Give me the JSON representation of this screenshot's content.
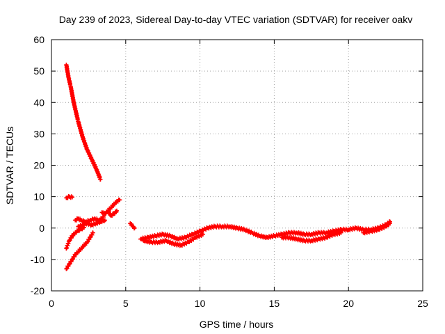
{
  "chart_data": {
    "type": "scatter",
    "title": "Day 239 of 2023, Sidereal Day-to-day VTEC variation (SDTVAR) for receiver oakv",
    "xlabel": "GPS time / hours",
    "ylabel": "SDTVAR / TECUs",
    "xlim": [
      0,
      25
    ],
    "ylim": [
      -20,
      60
    ],
    "xticks": [
      0,
      5,
      10,
      15,
      20,
      25
    ],
    "yticks": [
      -20,
      -10,
      0,
      10,
      20,
      30,
      40,
      50,
      60
    ],
    "grid": true,
    "marker": "+",
    "series": [
      {
        "name": "SDTVAR",
        "color": "#ff0000",
        "segments": [
          {
            "x": [
              1.0,
              1.15,
              1.3,
              1.5,
              1.8,
              2.1,
              2.4,
              2.7,
              3.0,
              3.3
            ],
            "y": [
              52.0,
              48.0,
              45.0,
              40.0,
              34.0,
              29.0,
              25.0,
              22.0,
              19.0,
              15.5
            ]
          },
          {
            "x": [
              1.0,
              1.2,
              1.4,
              1.6,
              1.8,
              2.0,
              2.2,
              2.4,
              2.6,
              2.8
            ],
            "y": [
              -13.0,
              -11.5,
              -10.0,
              -8.5,
              -7.5,
              -6.5,
              -5.5,
              -4.5,
              -3.0,
              -1.5
            ]
          },
          {
            "x": [
              1.0,
              1.2,
              1.4,
              1.6,
              1.8,
              2.0,
              2.2
            ],
            "y": [
              -6.5,
              -4.0,
              -2.5,
              -1.5,
              -0.8,
              -0.3,
              0.2
            ]
          },
          {
            "x": [
              1.0,
              1.2,
              1.4
            ],
            "y": [
              9.6,
              10.0,
              9.8
            ]
          },
          {
            "x": [
              1.6,
              1.8,
              2.0,
              2.3,
              2.6,
              2.9,
              3.2,
              3.5
            ],
            "y": [
              2.5,
              3.0,
              2.5,
              2.0,
              2.5,
              3.0,
              2.5,
              3.5
            ]
          },
          {
            "x": [
              1.8,
              2.1,
              2.4,
              2.7,
              3.0,
              3.3,
              3.6
            ],
            "y": [
              0.5,
              1.0,
              1.5,
              1.0,
              1.5,
              2.0,
              2.5
            ]
          },
          {
            "x": [
              3.4,
              3.6,
              3.8,
              4.0,
              4.2,
              4.4,
              4.6
            ],
            "y": [
              5.0,
              4.5,
              5.5,
              6.5,
              7.5,
              8.5,
              9.0
            ]
          },
          {
            "x": [
              3.8,
              4.0,
              4.2,
              4.4
            ],
            "y": [
              5.5,
              4.0,
              4.5,
              5.5
            ]
          },
          {
            "x": [
              5.3,
              5.5,
              5.6
            ],
            "y": [
              1.5,
              0.5,
              0.0
            ]
          },
          {
            "x": [
              6.0,
              6.5,
              7.0,
              7.5,
              8.0,
              8.5,
              9.0,
              9.5,
              10.0,
              10.5,
              11.0,
              11.5,
              12.0,
              12.5,
              13.0,
              13.5,
              14.0,
              14.5,
              15.0,
              15.5,
              16.0,
              16.5,
              17.0,
              17.5,
              18.0,
              18.5,
              19.0,
              19.5,
              20.0,
              20.5,
              21.0,
              21.5,
              22.0,
              22.5,
              22.8
            ],
            "y": [
              -3.5,
              -3.0,
              -2.5,
              -2.0,
              -2.5,
              -3.5,
              -3.0,
              -2.0,
              -1.0,
              0.0,
              0.5,
              0.5,
              0.5,
              0.0,
              -0.5,
              -1.5,
              -2.5,
              -3.0,
              -2.5,
              -2.0,
              -1.5,
              -1.5,
              -2.0,
              -2.0,
              -1.5,
              -1.5,
              -1.0,
              -0.5,
              -0.5,
              0.0,
              -0.5,
              -0.5,
              0.0,
              1.0,
              2.0
            ]
          },
          {
            "x": [
              6.2,
              6.7,
              7.2,
              7.7,
              8.2,
              8.7,
              9.2,
              9.7,
              10.2
            ],
            "y": [
              -4.0,
              -4.5,
              -4.5,
              -4.0,
              -5.0,
              -5.5,
              -4.5,
              -3.0,
              -2.0
            ]
          },
          {
            "x": [
              15.5,
              16.0,
              16.5,
              17.0,
              17.5,
              18.0,
              18.5,
              19.0,
              19.5
            ],
            "y": [
              -3.0,
              -3.0,
              -3.5,
              -4.0,
              -4.0,
              -3.5,
              -3.0,
              -2.0,
              -1.5
            ]
          },
          {
            "x": [
              21.0,
              21.5,
              22.0,
              22.5,
              22.8
            ],
            "y": [
              -1.5,
              -1.0,
              -0.5,
              0.5,
              1.5
            ]
          }
        ]
      }
    ]
  }
}
